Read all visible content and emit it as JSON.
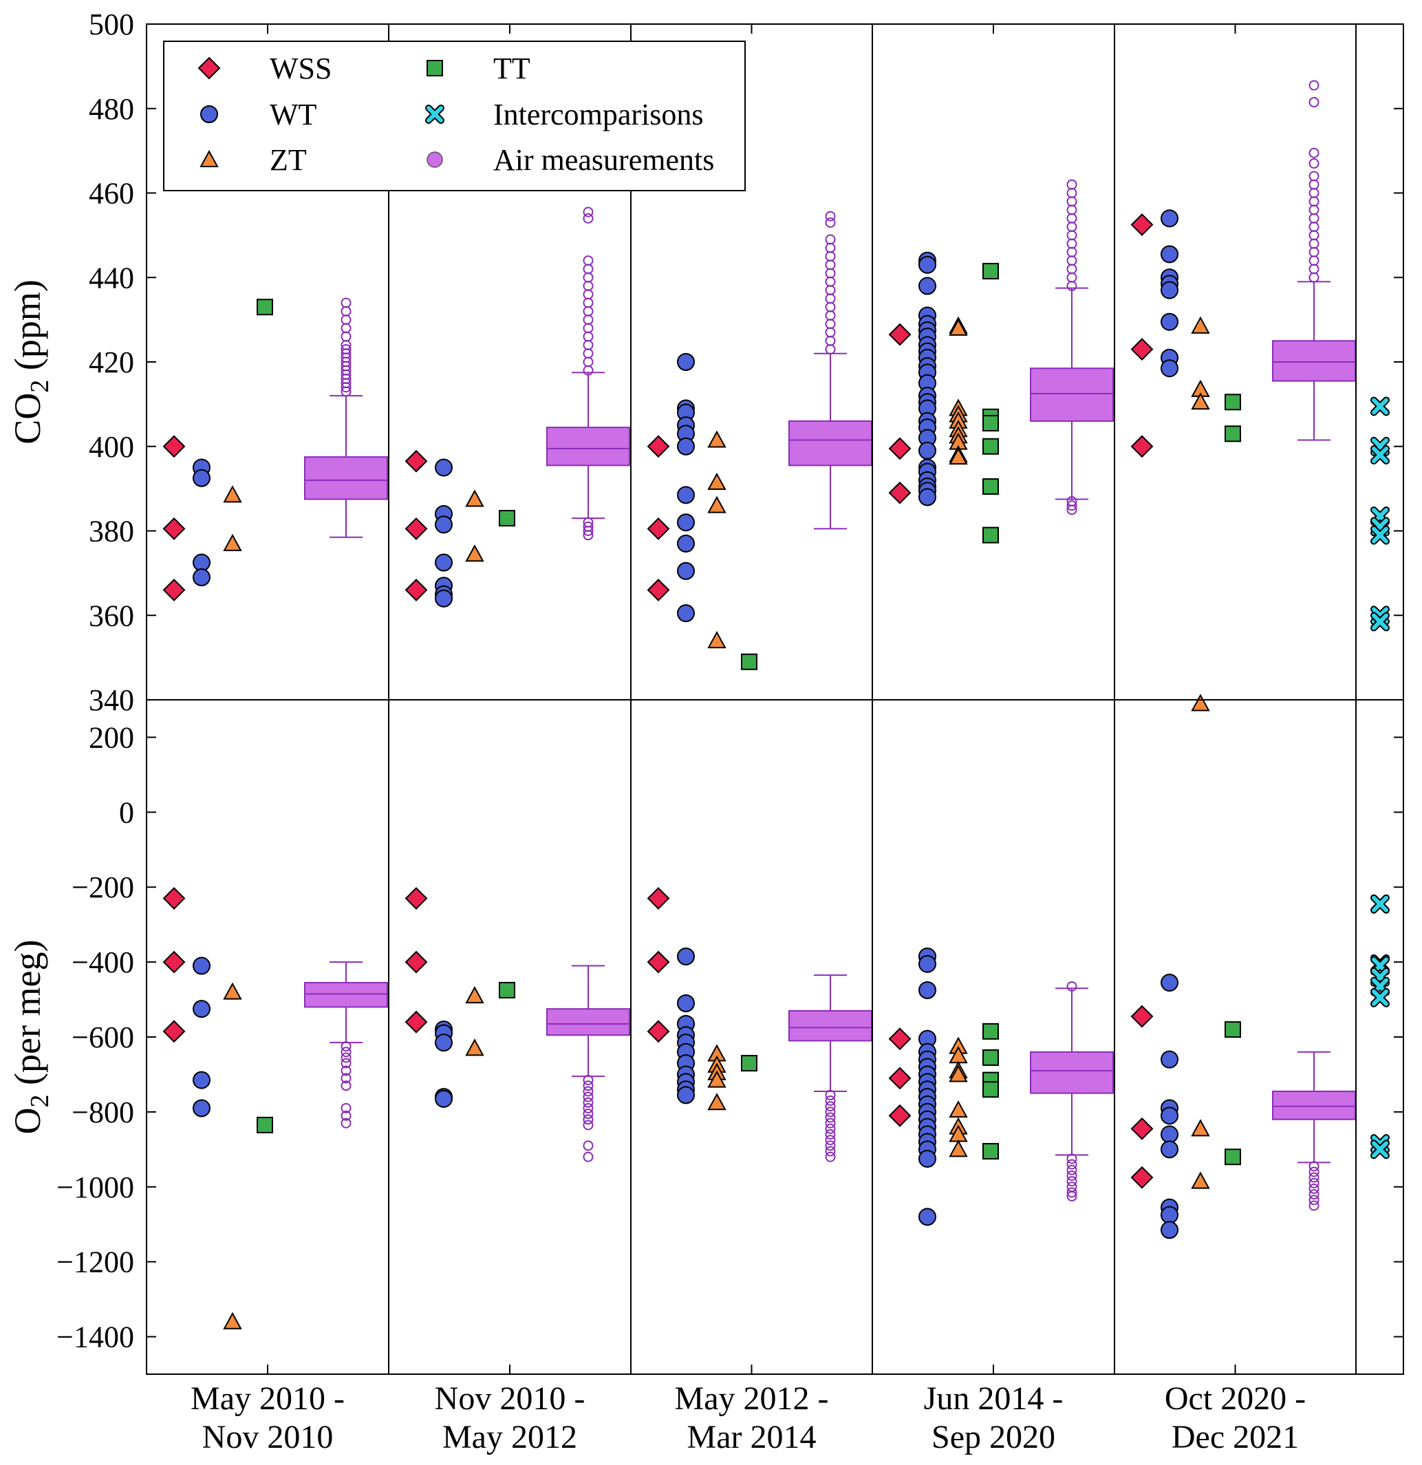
{
  "chart_data": {
    "type": "scatter",
    "periods": [
      {
        "line1": "May 2010 -",
        "line2": "Nov 2010"
      },
      {
        "line1": "Nov 2010 -",
        "line2": "May 2012"
      },
      {
        "line1": "May 2012 -",
        "line2": "Mar 2014"
      },
      {
        "line1": "Jun 2014 -",
        "line2": "Sep 2020"
      },
      {
        "line1": "Oct 2020 -",
        "line2": "Dec 2021"
      }
    ],
    "legend": [
      {
        "key": "WSS",
        "label": "WSS"
      },
      {
        "key": "WT",
        "label": "WT"
      },
      {
        "key": "ZT",
        "label": "ZT"
      },
      {
        "key": "TT",
        "label": "TT"
      },
      {
        "key": "IC",
        "label": "Intercomparisons"
      },
      {
        "key": "AIR",
        "label": "Air measurements"
      }
    ],
    "colors": {
      "WSS": "#e8214f",
      "WT": "#4c62d8",
      "ZT": "#f38a3a",
      "TT": "#3cab4a",
      "IC": "#2fd3e6",
      "AIR_fill": "#cc6fe6",
      "AIR_line": "#8a2cb8"
    },
    "panels": [
      {
        "id": "co2",
        "ylabel_main": "CO",
        "ylabel_sub": "2",
        "ylabel_unit": " (ppm)",
        "ylim": [
          340,
          500
        ],
        "yticks": [
          340,
          360,
          380,
          400,
          420,
          440,
          460,
          480,
          500
        ],
        "ytick_labels": [
          "340",
          "360",
          "380",
          "400",
          "420",
          "440",
          "460",
          "480",
          "500"
        ],
        "periods": [
          {
            "WSS": [
              400.0,
              380.5,
              366.0
            ],
            "WT": [
              395.0,
              392.5,
              372.5,
              369.0
            ],
            "ZT": [
              388.5,
              377.0
            ],
            "TT": [
              433.0
            ],
            "air": {
              "q1": 387.5,
              "median": 392.0,
              "q3": 397.5,
              "whisker_low": 378.5,
              "whisker_high": 412.0,
              "outliers_high": [
                413,
                414,
                415,
                416,
                417,
                418,
                419,
                420,
                421,
                422,
                423,
                424,
                426,
                428,
                430,
                432,
                434
              ],
              "outliers_low": []
            }
          },
          {
            "WSS": [
              396.5,
              380.5,
              366.0
            ],
            "WT": [
              395.0,
              384.0,
              381.5,
              372.5,
              367.0,
              365.0,
              364.0
            ],
            "ZT": [
              387.5,
              374.5
            ],
            "TT": [
              383.0
            ],
            "air": {
              "q1": 395.5,
              "median": 399.5,
              "q3": 404.5,
              "whisker_low": 383.0,
              "whisker_high": 417.5,
              "outliers_high": [
                418,
                420,
                422,
                424,
                426,
                428,
                430,
                432,
                434,
                436,
                438,
                440,
                442,
                444,
                454,
                455.5
              ],
              "outliers_low": [
                382,
                381,
                380,
                379
              ]
            }
          },
          {
            "WSS": [
              400.0,
              380.5,
              366.0
            ],
            "WT": [
              420.0,
              409.0,
              408.0,
              405.0,
              403.0,
              400.0,
              388.5,
              382.0,
              377.0,
              370.5,
              360.5
            ],
            "ZT": [
              401.5,
              391.5,
              386.0,
              354.0
            ],
            "TT": [
              349.0
            ],
            "air": {
              "q1": 395.5,
              "median": 401.5,
              "q3": 406.0,
              "whisker_low": 380.5,
              "whisker_high": 422.0,
              "outliers_high": [
                423,
                425,
                427,
                429,
                431,
                433,
                435,
                437,
                439,
                441,
                443,
                445,
                447,
                449,
                453,
                454.5
              ],
              "outliers_low": []
            }
          },
          {
            "WSS": [
              426.5,
              399.5,
              389.0
            ],
            "WT": [
              444.0,
              443.0,
              438.0,
              431.0,
              429.0,
              427.5,
              426.0,
              424.0,
              422.5,
              421.0,
              419.0,
              417.5,
              415.0,
              412.0,
              410.5,
              409.0,
              406.0,
              404.5,
              402.0,
              399.0,
              395.0,
              394.0,
              392.0,
              390.5,
              389.5,
              388.0
            ],
            "ZT": [
              428.5,
              428.0,
              409.0,
              407.5,
              406.0,
              404.0,
              402.5,
              401.0,
              398.0,
              397.5
            ],
            "TT": [
              441.5,
              407.0,
              405.5,
              400.0,
              390.5,
              379.0
            ],
            "air": {
              "q1": 406.0,
              "median": 412.5,
              "q3": 418.5,
              "whisker_low": 387.5,
              "whisker_high": 437.5,
              "outliers_high": [
                438,
                440,
                442,
                444,
                446,
                448,
                450,
                452,
                454,
                456,
                458,
                460,
                462
              ],
              "outliers_low": [
                387,
                386,
                385
              ]
            }
          },
          {
            "WSS": [
              452.5,
              423.0,
              400.0
            ],
            "WT": [
              454.0,
              445.5,
              440.0,
              438.5,
              437.0,
              429.5,
              421.0,
              418.5
            ],
            "ZT": [
              428.5,
              413.5,
              410.5
            ],
            "TT": [
              410.5,
              403.0
            ],
            "air": {
              "q1": 415.5,
              "median": 420.0,
              "q3": 425.0,
              "whisker_low": 401.5,
              "whisker_high": 439.0,
              "outliers_high": [
                440,
                442,
                444,
                446,
                448,
                450,
                452,
                454,
                456,
                458,
                460,
                462,
                464,
                467,
                469.5,
                481.5,
                485.5
              ],
              "outliers_low": []
            }
          }
        ],
        "IC": [
          409.5,
          400.0,
          398.0,
          383.5,
          381.0,
          379.0,
          360.0,
          358.5
        ]
      },
      {
        "id": "o2",
        "ylabel_main": "O",
        "ylabel_sub": "2",
        "ylabel_unit": " (per meg)",
        "ylim": [
          -1500,
          300
        ],
        "yticks": [
          -1400,
          -1200,
          -1000,
          -800,
          -600,
          -400,
          -200,
          0,
          200
        ],
        "ytick_labels": [
          "−1400",
          "−1200",
          "−1000",
          "−800",
          "−600",
          "−400",
          "−200",
          "0",
          "200"
        ],
        "periods": [
          {
            "WSS": [
              -230,
              -400,
              -585
            ],
            "WT": [
              -410,
              -525,
              -715,
              -790
            ],
            "ZT": [
              -480,
              -1360
            ],
            "TT": [
              -835
            ],
            "air": {
              "q1": -520,
              "median": -485,
              "q3": -455,
              "whisker_low": -615,
              "whisker_high": -400,
              "outliers_high": [],
              "outliers_low": [
                -625,
                -640,
                -655,
                -670,
                -690,
                -710,
                -730,
                -790,
                -810,
                -830
              ]
            }
          },
          {
            "WSS": [
              -230,
              -400,
              -560
            ],
            "WT": [
              -580,
              -590,
              -615,
              -760,
              -765
            ],
            "ZT": [
              -490,
              -630
            ],
            "TT": [
              -475
            ],
            "air": {
              "q1": -595,
              "median": -565,
              "q3": -525,
              "whisker_low": -705,
              "whisker_high": -410,
              "outliers_high": [],
              "outliers_low": [
                -715,
                -730,
                -745,
                -760,
                -775,
                -790,
                -805,
                -820,
                -835,
                -890,
                -920
              ]
            }
          },
          {
            "WSS": [
              -230,
              -400,
              -585
            ],
            "WT": [
              -385,
              -510,
              -565,
              -595,
              -615,
              -640,
              -670,
              -700,
              -720,
              -740,
              -755
            ],
            "ZT": [
              -645,
              -675,
              -695,
              -715,
              -775
            ],
            "TT": [
              -670
            ],
            "air": {
              "q1": -610,
              "median": -575,
              "q3": -530,
              "whisker_low": -745,
              "whisker_high": -435,
              "outliers_high": [],
              "outliers_low": [
                -755,
                -770,
                -785,
                -800,
                -815,
                -830,
                -845,
                -860,
                -875,
                -890,
                -905,
                -920
              ]
            }
          },
          {
            "WSS": [
              -605,
              -710,
              -810
            ],
            "WT": [
              -385,
              -405,
              -475,
              -605,
              -640,
              -660,
              -680,
              -700,
              -720,
              -740,
              -760,
              -780,
              -800,
              -820,
              -840,
              -860,
              -880,
              -900,
              -925,
              -1080
            ],
            "ZT": [
              -625,
              -650,
              -690,
              -700,
              -795,
              -840,
              -860,
              -900
            ],
            "TT": [
              -585,
              -655,
              -715,
              -740,
              -905
            ],
            "air": {
              "q1": -750,
              "median": -690,
              "q3": -640,
              "whisker_low": -915,
              "whisker_high": -470,
              "outliers_high": [
                -465
              ],
              "outliers_low": [
                -925,
                -940,
                -955,
                -970,
                -985,
                -1000,
                -1015,
                -1025
              ]
            }
          },
          {
            "WSS": [
              -545,
              -845,
              -975
            ],
            "WT": [
              -455,
              -660,
              -790,
              -810,
              -860,
              -900,
              -1055,
              -1075,
              -1115
            ],
            "ZT": [
              290,
              -845,
              -985
            ],
            "TT": [
              -580,
              -920
            ],
            "air": {
              "q1": -820,
              "median": -785,
              "q3": -745,
              "whisker_low": -935,
              "whisker_high": -640,
              "outliers_high": [],
              "outliers_low": [
                -945,
                -960,
                -975,
                -990,
                -1005,
                -1020,
                -1035,
                -1050
              ]
            }
          }
        ],
        "IC": [
          -245,
          -405,
          -410,
          -440,
          -465,
          -495,
          -885,
          -900
        ]
      }
    ]
  }
}
